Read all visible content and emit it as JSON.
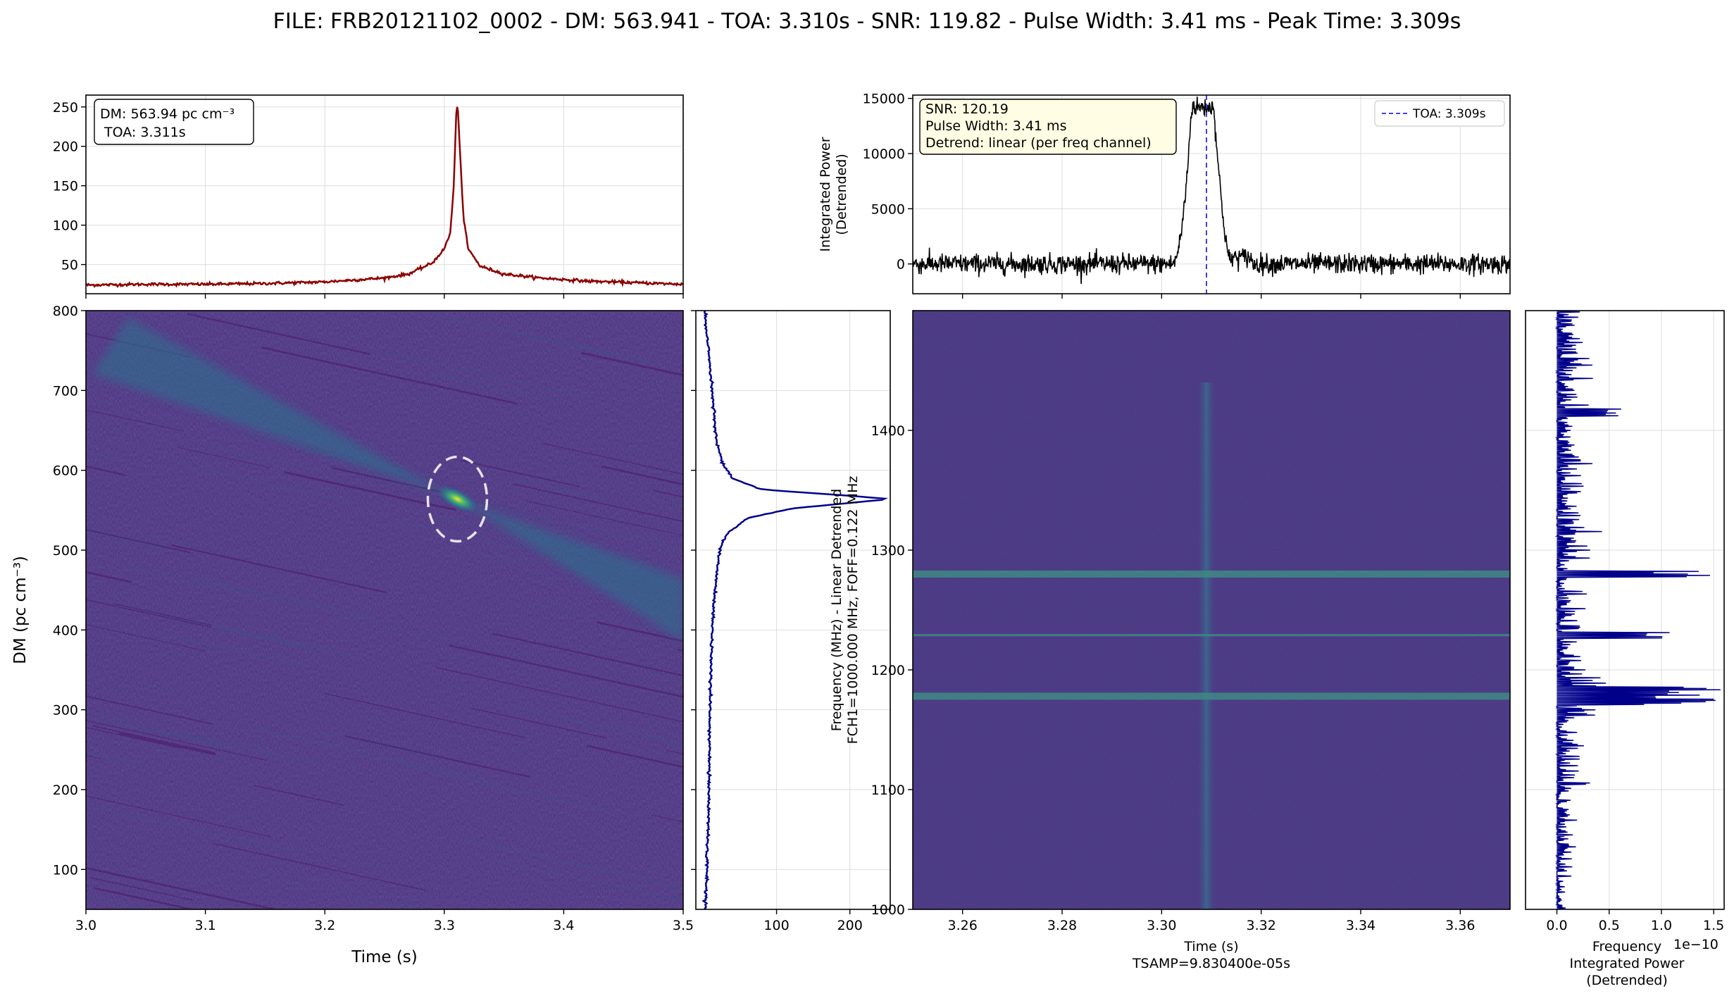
{
  "figure": {
    "title": "FILE: FRB20121102_0002 - DM: 563.941 - TOA: 3.310s - SNR: 119.82 - Pulse Width: 3.41 ms - Peak Time: 3.309s"
  },
  "colors": {
    "dm_curve": "#8b0000",
    "dm_profile": "#00008b",
    "pulse_curve": "#000000",
    "toa_line": "#2a2ad6",
    "freq_profile": "#00008b",
    "viridis_dark": "#440154",
    "viridis_mid": "#3b528b",
    "viridis_green": "#21918c",
    "viridis_yellow": "#fde725",
    "annotation_bg": "#fffde3"
  },
  "chart_data": [
    {
      "id": "dm-time-profile",
      "type": "line",
      "annotation": [
        "DM: 563.94 pc cm⁻³",
        " TOA: 3.311s"
      ],
      "xlim": [
        3.0,
        3.5
      ],
      "ylim": [
        13,
        265
      ],
      "yticks": [
        50,
        100,
        150,
        200,
        250
      ],
      "xticks": [
        3.0,
        3.1,
        3.2,
        3.3,
        3.4,
        3.5
      ],
      "x": [
        3.0,
        3.05,
        3.1,
        3.15,
        3.2,
        3.25,
        3.27,
        3.29,
        3.3,
        3.305,
        3.308,
        3.31,
        3.311,
        3.313,
        3.316,
        3.32,
        3.33,
        3.35,
        3.38,
        3.42,
        3.46,
        3.5
      ],
      "y": [
        24,
        25,
        25,
        26,
        28,
        33,
        38,
        52,
        70,
        90,
        150,
        240,
        255,
        200,
        110,
        70,
        48,
        38,
        33,
        29,
        27,
        25
      ]
    },
    {
      "id": "pulse-profile",
      "type": "line",
      "ylabel": "Integrated Power\n(Detrended)",
      "annotation": [
        "SNR: 120.19",
        "Pulse Width: 3.41 ms",
        "Detrend: linear (per freq channel)"
      ],
      "legend": "TOA: 3.309s",
      "toa": 3.309,
      "xlim": [
        3.25,
        3.37
      ],
      "ylim": [
        -2700,
        15300
      ],
      "yticks": [
        0,
        5000,
        10000,
        15000
      ],
      "pulse": {
        "start": 3.302,
        "peak_start": 3.306,
        "peak_end": 3.3105,
        "end": 3.314,
        "height": 14200,
        "noise": 450
      }
    },
    {
      "id": "dm-time-plane",
      "type": "heatmap",
      "xlabel": "Time (s)",
      "ylabel": "DM (pc cm⁻³)",
      "xlim": [
        3.0,
        3.5
      ],
      "ylim": [
        50,
        800
      ],
      "xticks": [
        3.0,
        3.1,
        3.2,
        3.3,
        3.4,
        3.5
      ],
      "yticks": [
        100,
        200,
        300,
        400,
        500,
        600,
        700,
        800
      ],
      "peak": {
        "time": 3.311,
        "dm": 563.94
      },
      "marker": "dashed-ellipse"
    },
    {
      "id": "dm-profile",
      "type": "line",
      "xticks": [
        100,
        200
      ],
      "xlim": [
        -10,
        255
      ],
      "ylim": [
        50,
        800
      ],
      "dm": [
        50,
        100,
        200,
        300,
        400,
        450,
        500,
        520,
        540,
        552,
        560,
        564,
        568,
        576,
        590,
        610,
        640,
        700,
        760,
        800
      ],
      "power": [
        3,
        5,
        8,
        9,
        12,
        16,
        22,
        32,
        60,
        120,
        210,
        255,
        200,
        80,
        40,
        25,
        18,
        12,
        6,
        2
      ]
    },
    {
      "id": "dynamic-spectrum",
      "type": "heatmap",
      "xlabel": "Time (s)\nTSAMP=9.830400e-05s",
      "ylabel": "Frequency (MHz) - Linear Detrended\nFCH1=1000.000 MHz, FOFF=0.122 MHz",
      "xlim": [
        3.25,
        3.37
      ],
      "ylim": [
        1000,
        1500
      ],
      "xticks": [
        3.26,
        3.28,
        3.3,
        3.32,
        3.34,
        3.36
      ],
      "yticks": [
        1000,
        1100,
        1200,
        1300,
        1400
      ],
      "pulse_time": 3.309,
      "rfi_channels_mhz": [
        1178,
        1229,
        1280
      ]
    },
    {
      "id": "frequency-profile",
      "type": "line",
      "xlabel": "Frequency\nIntegrated Power\n(Detrended)",
      "scale_label": "1e−10",
      "xticks": [
        0.0,
        0.5,
        1.0,
        1.5
      ],
      "xlim": [
        -0.3,
        1.6
      ],
      "ylim": [
        1000,
        1500
      ],
      "spikes": [
        {
          "freq": 1178,
          "value": 1.4
        },
        {
          "freq": 1229,
          "value": 1.1
        },
        {
          "freq": 1280,
          "value": 1.55
        },
        {
          "freq": 1415,
          "value": 0.65
        }
      ]
    }
  ]
}
